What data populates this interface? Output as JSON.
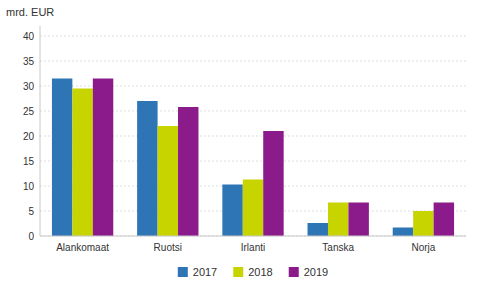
{
  "chart_data": {
    "type": "bar",
    "ylabel": "mrd. EUR",
    "categories": [
      "Alankomaat",
      "Ruotsi",
      "Irlanti",
      "Tanska",
      "Norja"
    ],
    "series": [
      {
        "name": "2017",
        "color": "#2e75b6",
        "values": [
          31.5,
          27.0,
          10.3,
          2.6,
          1.7
        ]
      },
      {
        "name": "2018",
        "color": "#c8d400",
        "values": [
          29.5,
          22.0,
          11.3,
          6.7,
          5.0
        ]
      },
      {
        "name": "2019",
        "color": "#8b1a8b",
        "values": [
          31.5,
          25.8,
          21.0,
          6.7,
          6.7
        ]
      }
    ],
    "ylim": [
      0,
      42
    ],
    "yticks": [
      0,
      5,
      10,
      15,
      20,
      25,
      30,
      35,
      40
    ],
    "grid": true,
    "legend": "bottom"
  }
}
